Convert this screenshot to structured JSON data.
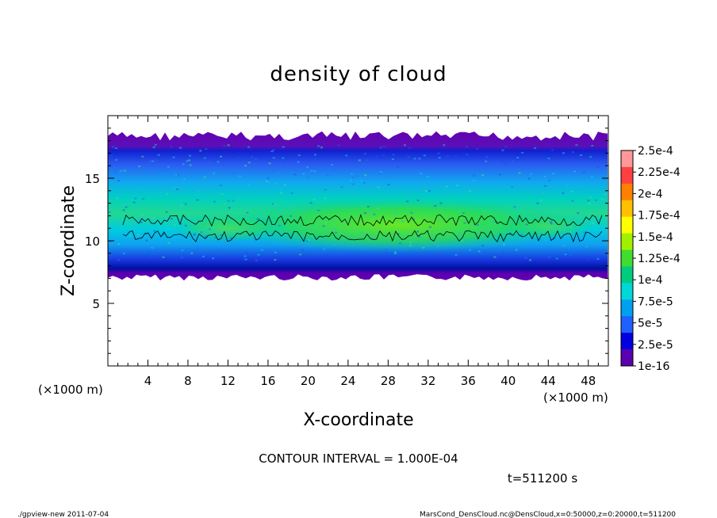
{
  "chart_data": {
    "type": "heatmap",
    "title": "density of cloud",
    "xlabel": "X-coordinate",
    "ylabel": "Z-coordinate",
    "x_unit": "(×1000 m)",
    "y_unit": "(×1000 m)",
    "xlim": [
      0,
      50
    ],
    "ylim": [
      0,
      20
    ],
    "x_ticks": [
      "4",
      "8",
      "12",
      "16",
      "20",
      "24",
      "28",
      "32",
      "36",
      "40",
      "44",
      "48"
    ],
    "y_ticks": [
      "5",
      "10",
      "15"
    ],
    "colorbar": {
      "labels": [
        "2.5e-4",
        "2.25e-4",
        "2e-4",
        "1.75e-4",
        "1.5e-4",
        "1.25e-4",
        "1e-4",
        "7.5e-5",
        "5e-5",
        "2.5e-5",
        "1e-16"
      ],
      "colors": [
        "#ff9999",
        "#ff4040",
        "#ff8000",
        "#ffc000",
        "#ffff00",
        "#a0f000",
        "#40dd30",
        "#00cc80",
        "#00d8d8",
        "#00a0f0",
        "#2060ff",
        "#0000e0",
        "#5a00b0"
      ]
    },
    "cloud_layer": {
      "z_bottom": 7.2,
      "z_top": 19.0,
      "core_z_range": [
        9.5,
        13.0
      ],
      "max_density_x_range": [
        20,
        38
      ]
    },
    "contour_interval": "CONTOUR INTERVAL = 1.000E-04",
    "time_label": "t=511200 s"
  },
  "footer": {
    "left": "./gpview-new  2011-07-04",
    "right": "MarsCond_DensCloud.nc@DensCloud,x=0:50000,z=0:20000,t=511200"
  }
}
